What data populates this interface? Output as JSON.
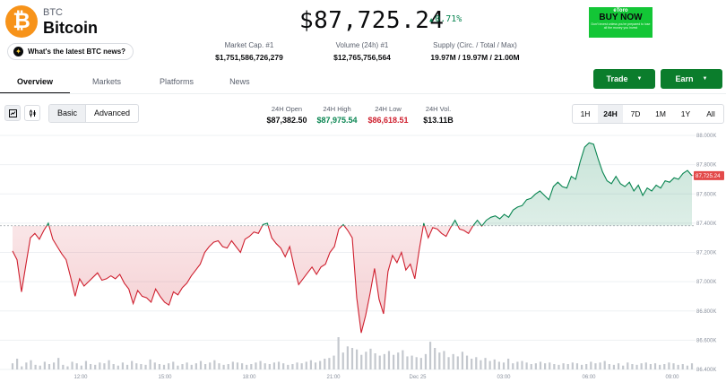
{
  "coin": {
    "logo_glyph": "₿",
    "symbol": "BTC",
    "name": "Bitcoin",
    "brand_color": "#f7931a"
  },
  "news_pill": {
    "label": "What's the latest BTC news?",
    "icon": "sparkle-icon"
  },
  "price": {
    "value": "$87,725.24",
    "change": "0.71%",
    "direction_icon": "triangle-up-icon"
  },
  "stats": [
    {
      "label": "Market Cap. #1",
      "value": "$1,751,586,726,279"
    },
    {
      "label": "Volume (24h) #1",
      "value": "$12,765,756,564"
    },
    {
      "label": "Supply (Circ. / Total / Max)",
      "value": "19.97M / 19.97M / 21.00M"
    }
  ],
  "ad": {
    "brand": "eToro",
    "headline": "BUY NOW",
    "disclaimer": "Don't invest unless you're prepared to lose all the money you invest"
  },
  "tabs": [
    "Overview",
    "Markets",
    "Platforms",
    "News"
  ],
  "actions": {
    "trade": "Trade",
    "earn": "Earn"
  },
  "toolbar": {
    "modes": [
      "Basic",
      "Advanced"
    ],
    "line_icon": "line-chart-icon",
    "candle_icon": "candlestick-icon"
  },
  "ohlc": [
    {
      "label": "24H Open",
      "value": "$87,382.50",
      "color": "#0a0b0d"
    },
    {
      "label": "24H High",
      "value": "$87,975.54",
      "color": "#098551"
    },
    {
      "label": "24H Low",
      "value": "$86,618.51",
      "color": "#cf202f"
    },
    {
      "label": "24H Vol.",
      "value": "$13.11B",
      "color": "#0a0b0d"
    }
  ],
  "ranges": [
    "1H",
    "24H",
    "7D",
    "1M",
    "1Y",
    "All"
  ],
  "colors": {
    "up": "#098551",
    "down": "#cf202f",
    "action": "#0b7d2c"
  },
  "chart_data": {
    "type": "line",
    "y_ticks": [
      "88.000K",
      "87.800K",
      "87.600K",
      "87.400K",
      "87.200K",
      "87.000K",
      "86.800K",
      "86.600K",
      "86.400K"
    ],
    "ylim": [
      86400,
      88000
    ],
    "x_ticks": [
      "12:00",
      "15:00",
      "18:00",
      "21:00",
      "Dec 25",
      "03:00",
      "06:00",
      "09:00"
    ],
    "open_price": 87382.5,
    "current_label": "87,725.24",
    "series": [
      {
        "values": [
          87210,
          87150,
          86930,
          87120,
          87300,
          87330,
          87290,
          87350,
          87400,
          87290,
          87240,
          87190,
          87150,
          87030,
          86900,
          87020,
          86970,
          87000,
          87030,
          87060,
          87010,
          87020,
          87040,
          87020,
          87050,
          86990,
          86950,
          86850,
          86940,
          86900,
          86890,
          86860,
          86950,
          86900,
          86860,
          86840,
          86930,
          86910,
          86960,
          86990,
          87040,
          87080,
          87120,
          87200,
          87240,
          87270,
          87280,
          87240,
          87230,
          87280,
          87240,
          87200,
          87290,
          87310,
          87340,
          87330,
          87390,
          87400,
          87300,
          87260,
          87230,
          87170,
          87240,
          87100,
          86980,
          87020,
          87060,
          87100,
          87050,
          87100,
          87120,
          87200,
          87240,
          87360,
          87390,
          87350,
          87300,
          86890,
          86650,
          86770,
          86920,
          87090,
          86880,
          86780,
          87070,
          87180,
          87130,
          87200,
          87080,
          87120,
          87020,
          87220,
          87400,
          87300,
          87370,
          87360,
          87330,
          87310,
          87370,
          87420,
          87360,
          87350,
          87330,
          87380,
          87420,
          87380,
          87420,
          87440,
          87450,
          87430,
          87460,
          87440,
          87490,
          87510,
          87520,
          87560,
          87570,
          87600,
          87620,
          87590,
          87560,
          87650,
          87680,
          87650,
          87640,
          87720,
          87700,
          87820,
          87920,
          87950,
          87940,
          87840,
          87750,
          87690,
          87670,
          87720,
          87670,
          87650,
          87680,
          87620,
          87660,
          87590,
          87640,
          87620,
          87660,
          87640,
          87690,
          87680,
          87710,
          87700,
          87740,
          87760,
          87725
        ]
      }
    ],
    "volume": [
      8,
      14,
      4,
      9,
      12,
      6,
      5,
      10,
      7,
      9,
      15,
      6,
      4,
      10,
      8,
      5,
      11,
      7,
      6,
      9,
      8,
      12,
      7,
      5,
      9,
      6,
      11,
      8,
      7,
      6,
      13,
      9,
      7,
      6,
      8,
      10,
      5,
      7,
      9,
      6,
      8,
      11,
      7,
      9,
      12,
      8,
      6,
      7,
      10,
      9,
      8,
      6,
      7,
      9,
      11,
      8,
      7,
      9,
      10,
      8,
      6,
      7,
      9,
      8,
      10,
      12,
      9,
      11,
      14,
      15,
      18,
      42,
      22,
      30,
      28,
      26,
      19,
      23,
      27,
      21,
      18,
      20,
      24,
      19,
      22,
      25,
      17,
      18,
      16,
      15,
      20,
      36,
      28,
      22,
      24,
      16,
      20,
      17,
      23,
      18,
      14,
      16,
      12,
      15,
      11,
      13,
      10,
      9,
      14,
      8,
      10,
      11,
      9,
      7,
      8,
      10,
      8,
      9,
      7,
      6,
      8,
      7,
      9,
      8,
      6,
      7,
      10,
      8,
      9,
      11,
      7,
      6,
      8,
      5,
      9,
      7,
      6,
      8,
      9,
      7,
      8,
      6,
      7,
      9,
      8,
      6,
      7,
      5,
      8
    ]
  }
}
